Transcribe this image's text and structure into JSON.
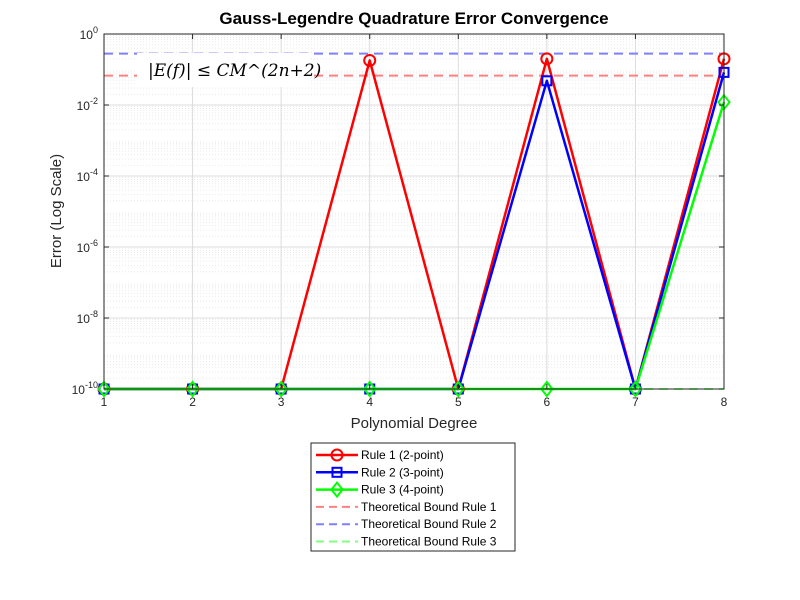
{
  "chart_data": {
    "type": "line",
    "title": "Gauss-Legendre Quadrature Error Convergence",
    "xlabel": "Polynomial Degree",
    "ylabel": "Error (Log Scale)",
    "x": [
      1,
      2,
      3,
      4,
      5,
      6,
      7,
      8
    ],
    "xlim": [
      1,
      8
    ],
    "ylim": [
      1e-10,
      1
    ],
    "yscale": "log",
    "grid": true,
    "legend_position": "below-plot",
    "annotation": "|E(f)| ≤ CM^(2n+2)",
    "xticks": [
      "1",
      "2",
      "3",
      "4",
      "5",
      "6",
      "7",
      "8"
    ],
    "yticks": [
      {
        "base": "10",
        "exp": "-10"
      },
      {
        "base": "10",
        "exp": "-8"
      },
      {
        "base": "10",
        "exp": "-6"
      },
      {
        "base": "10",
        "exp": "-4"
      },
      {
        "base": "10",
        "exp": "-2"
      },
      {
        "base": "10",
        "exp": "0"
      }
    ],
    "series": [
      {
        "name": "Rule 1 (2-point)",
        "color": "#ff0000",
        "marker": "circle",
        "style": "solid",
        "values": [
          1e-10,
          1e-10,
          1e-10,
          0.18,
          1e-10,
          0.2,
          1e-10,
          0.2
        ]
      },
      {
        "name": "Rule 2 (3-point)",
        "color": "#0000ff",
        "marker": "square",
        "style": "solid",
        "values": [
          1e-10,
          1e-10,
          1e-10,
          1e-10,
          1e-10,
          0.048,
          1e-10,
          0.083
        ]
      },
      {
        "name": "Rule 3 (4-point)",
        "color": "#00ff00",
        "marker": "diamond",
        "style": "solid",
        "values": [
          1e-10,
          1e-10,
          1e-10,
          1e-10,
          1e-10,
          1e-10,
          1e-10,
          0.012
        ]
      },
      {
        "name": "Theoretical Bound Rule 1",
        "color": "#ff8080",
        "style": "dashed",
        "constant": 0.067
      },
      {
        "name": "Theoretical Bound Rule 2",
        "color": "#8080ff",
        "style": "dashed",
        "constant": 0.28
      },
      {
        "name": "Theoretical Bound Rule 3",
        "color": "#80ff80",
        "style": "dashed",
        "constant": 1e-10
      }
    ]
  }
}
